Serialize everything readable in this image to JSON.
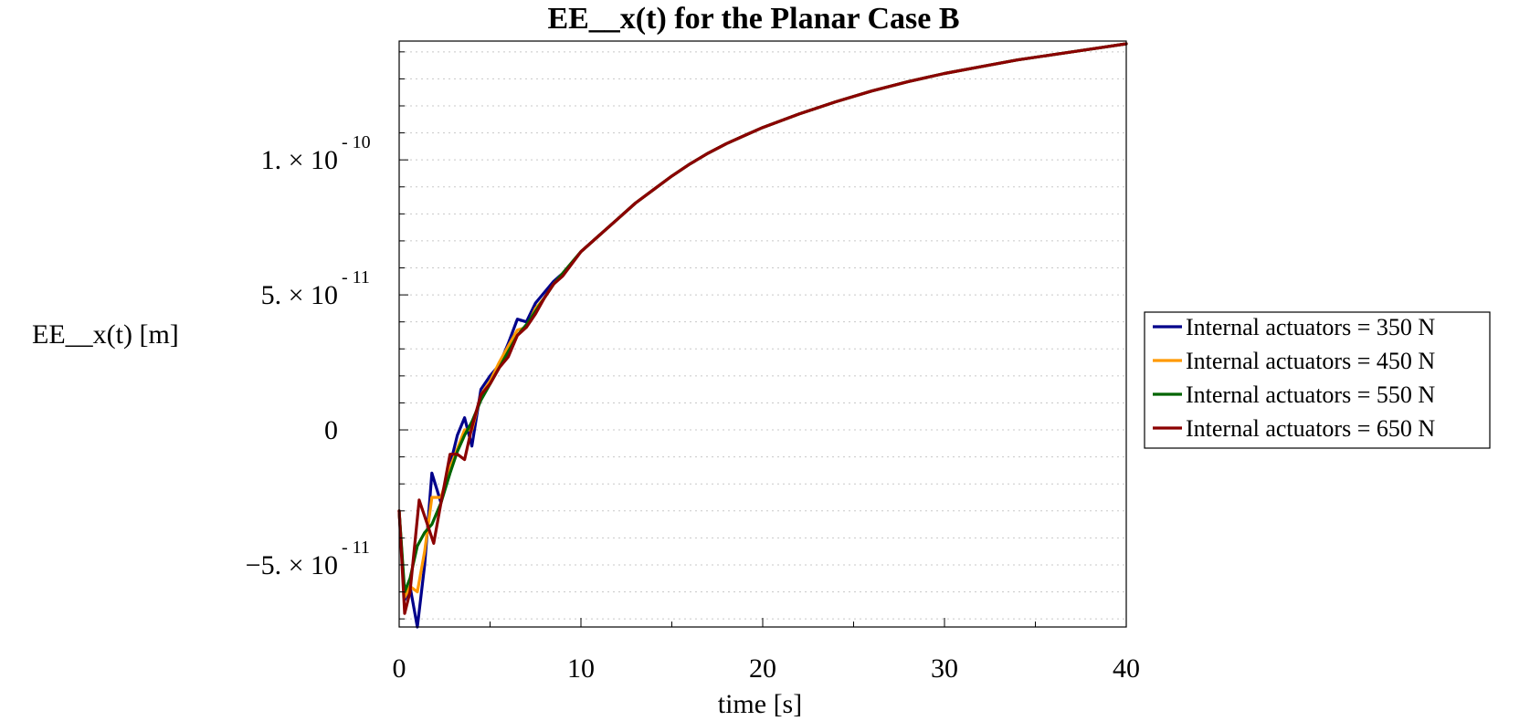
{
  "chart_data": {
    "type": "line",
    "title": "EE__x(t) for the Planar Case B",
    "xlabel": "time [s]",
    "ylabel": "EE__x(t) [m]",
    "xlim": [
      0,
      40
    ],
    "ylim": [
      -7.3e-11,
      1.44e-10
    ],
    "x_ticks": [
      {
        "value": 0,
        "label": "0"
      },
      {
        "value": 10,
        "label": "10"
      },
      {
        "value": 20,
        "label": "20"
      },
      {
        "value": 30,
        "label": "30"
      },
      {
        "value": 40,
        "label": "40"
      }
    ],
    "y_ticks": [
      {
        "value": -5e-11,
        "mantissa": "−5. × 10",
        "exponent": "- 11"
      },
      {
        "value": 0,
        "mantissa": "0",
        "exponent": ""
      },
      {
        "value": 5e-11,
        "mantissa": "5. × 10",
        "exponent": "- 11"
      },
      {
        "value": 1e-10,
        "mantissa": "1. × 10",
        "exponent": "- 10"
      }
    ],
    "grid": {
      "horizontal": true,
      "vertical": false
    },
    "legend_position": "right",
    "series": [
      {
        "name": "Internal actuators = 350 N",
        "color": "#00008b",
        "points": [
          [
            0,
            -3e-11
          ],
          [
            0.3,
            -6.3e-11
          ],
          [
            0.6,
            -5.8e-11
          ],
          [
            1.0,
            -7.3e-11
          ],
          [
            1.4,
            -5e-11
          ],
          [
            1.8,
            -1.6e-11
          ],
          [
            2.3,
            -2.7e-11
          ],
          [
            2.8,
            -1.3e-11
          ],
          [
            3.2,
            -2e-12
          ],
          [
            3.6,
            4.5e-12
          ],
          [
            4.0,
            -6e-12
          ],
          [
            4.5,
            1.5e-11
          ],
          [
            5.0,
            2e-11
          ],
          [
            5.5,
            2.4e-11
          ],
          [
            6.0,
            3.2e-11
          ],
          [
            6.5,
            4.1e-11
          ],
          [
            7.0,
            4e-11
          ],
          [
            7.5,
            4.7e-11
          ],
          [
            8.0,
            5.1e-11
          ],
          [
            8.5,
            5.5e-11
          ],
          [
            9.0,
            5.8e-11
          ],
          [
            10,
            6.6e-11
          ],
          [
            11,
            7.2e-11
          ],
          [
            12,
            7.8e-11
          ],
          [
            13,
            8.4e-11
          ],
          [
            14,
            8.9e-11
          ],
          [
            15,
            9.4e-11
          ],
          [
            16,
            9.85e-11
          ],
          [
            17,
            1.025e-10
          ],
          [
            18,
            1.06e-10
          ],
          [
            19,
            1.09e-10
          ],
          [
            20,
            1.12e-10
          ],
          [
            22,
            1.17e-10
          ],
          [
            24,
            1.215e-10
          ],
          [
            26,
            1.255e-10
          ],
          [
            28,
            1.29e-10
          ],
          [
            30,
            1.32e-10
          ],
          [
            32,
            1.345e-10
          ],
          [
            34,
            1.37e-10
          ],
          [
            36,
            1.39e-10
          ],
          [
            38,
            1.41e-10
          ],
          [
            40,
            1.43e-10
          ]
        ]
      },
      {
        "name": "Internal actuators = 450 N",
        "color": "#ff9900",
        "points": [
          [
            0,
            -3e-11
          ],
          [
            0.3,
            -6.2e-11
          ],
          [
            0.6,
            -5.8e-11
          ],
          [
            1.0,
            -6e-11
          ],
          [
            1.4,
            -4.5e-11
          ],
          [
            1.8,
            -2.5e-11
          ],
          [
            2.3,
            -2.5e-11
          ],
          [
            2.8,
            -1.4e-11
          ],
          [
            3.2,
            -7e-12
          ],
          [
            3.6,
            0.0
          ],
          [
            4.0,
            0.0
          ],
          [
            4.5,
            1.3e-11
          ],
          [
            5.0,
            1.8e-11
          ],
          [
            5.5,
            2.5e-11
          ],
          [
            6.0,
            3.1e-11
          ],
          [
            6.5,
            3.7e-11
          ],
          [
            7.0,
            3.8e-11
          ],
          [
            7.5,
            4.5e-11
          ],
          [
            8.0,
            4.9e-11
          ],
          [
            8.5,
            5.4e-11
          ],
          [
            9.0,
            5.8e-11
          ],
          [
            10,
            6.6e-11
          ],
          [
            11,
            7.2e-11
          ],
          [
            12,
            7.8e-11
          ],
          [
            13,
            8.4e-11
          ],
          [
            14,
            8.9e-11
          ],
          [
            15,
            9.4e-11
          ],
          [
            16,
            9.85e-11
          ],
          [
            17,
            1.025e-10
          ],
          [
            18,
            1.06e-10
          ],
          [
            19,
            1.09e-10
          ],
          [
            20,
            1.12e-10
          ],
          [
            22,
            1.17e-10
          ],
          [
            24,
            1.215e-10
          ],
          [
            26,
            1.255e-10
          ],
          [
            28,
            1.29e-10
          ],
          [
            30,
            1.32e-10
          ],
          [
            32,
            1.345e-10
          ],
          [
            34,
            1.37e-10
          ],
          [
            36,
            1.39e-10
          ],
          [
            38,
            1.41e-10
          ],
          [
            40,
            1.43e-10
          ]
        ]
      },
      {
        "name": "Internal actuators = 550 N",
        "color": "#006400",
        "points": [
          [
            0,
            -3e-11
          ],
          [
            0.3,
            -6e-11
          ],
          [
            0.6,
            -5.5e-11
          ],
          [
            1.0,
            -4.3e-11
          ],
          [
            1.4,
            -3.8e-11
          ],
          [
            1.8,
            -3.5e-11
          ],
          [
            2.3,
            -2.7e-11
          ],
          [
            2.8,
            -1.6e-11
          ],
          [
            3.2,
            -8e-12
          ],
          [
            3.6,
            -2e-12
          ],
          [
            4.0,
            3e-12
          ],
          [
            4.5,
            1.1e-11
          ],
          [
            5.0,
            1.7e-11
          ],
          [
            5.5,
            2.3e-11
          ],
          [
            6.0,
            2.9e-11
          ],
          [
            6.5,
            3.5e-11
          ],
          [
            7.0,
            3.9e-11
          ],
          [
            7.5,
            4.4e-11
          ],
          [
            8.0,
            4.9e-11
          ],
          [
            8.5,
            5.4e-11
          ],
          [
            9.0,
            5.8e-11
          ],
          [
            10,
            6.6e-11
          ],
          [
            11,
            7.2e-11
          ],
          [
            12,
            7.8e-11
          ],
          [
            13,
            8.4e-11
          ],
          [
            14,
            8.9e-11
          ],
          [
            15,
            9.4e-11
          ],
          [
            16,
            9.85e-11
          ],
          [
            17,
            1.025e-10
          ],
          [
            18,
            1.06e-10
          ],
          [
            19,
            1.09e-10
          ],
          [
            20,
            1.12e-10
          ],
          [
            22,
            1.17e-10
          ],
          [
            24,
            1.215e-10
          ],
          [
            26,
            1.255e-10
          ],
          [
            28,
            1.29e-10
          ],
          [
            30,
            1.32e-10
          ],
          [
            32,
            1.345e-10
          ],
          [
            34,
            1.37e-10
          ],
          [
            36,
            1.39e-10
          ],
          [
            38,
            1.41e-10
          ],
          [
            40,
            1.43e-10
          ]
        ]
      },
      {
        "name": "Internal actuators = 650 N",
        "color": "#8b0000",
        "points": [
          [
            0,
            -3e-11
          ],
          [
            0.3,
            -6.8e-11
          ],
          [
            0.6,
            -6e-11
          ],
          [
            1.1,
            -2.6e-11
          ],
          [
            1.5,
            -3.4e-11
          ],
          [
            1.9,
            -4.2e-11
          ],
          [
            2.3,
            -2.7e-11
          ],
          [
            2.8,
            -9e-12
          ],
          [
            3.2,
            -9e-12
          ],
          [
            3.6,
            -1.1e-11
          ],
          [
            4.0,
            1e-12
          ],
          [
            4.5,
            1.3e-11
          ],
          [
            5.0,
            1.7e-11
          ],
          [
            5.5,
            2.3e-11
          ],
          [
            6.0,
            2.7e-11
          ],
          [
            6.5,
            3.5e-11
          ],
          [
            7.0,
            3.8e-11
          ],
          [
            7.5,
            4.3e-11
          ],
          [
            8.0,
            4.9e-11
          ],
          [
            8.5,
            5.4e-11
          ],
          [
            9.0,
            5.7e-11
          ],
          [
            10,
            6.6e-11
          ],
          [
            11,
            7.2e-11
          ],
          [
            12,
            7.8e-11
          ],
          [
            13,
            8.4e-11
          ],
          [
            14,
            8.9e-11
          ],
          [
            15,
            9.4e-11
          ],
          [
            16,
            9.85e-11
          ],
          [
            17,
            1.025e-10
          ],
          [
            18,
            1.06e-10
          ],
          [
            19,
            1.09e-10
          ],
          [
            20,
            1.12e-10
          ],
          [
            22,
            1.17e-10
          ],
          [
            24,
            1.215e-10
          ],
          [
            26,
            1.255e-10
          ],
          [
            28,
            1.29e-10
          ],
          [
            30,
            1.32e-10
          ],
          [
            32,
            1.345e-10
          ],
          [
            34,
            1.37e-10
          ],
          [
            36,
            1.39e-10
          ],
          [
            38,
            1.41e-10
          ],
          [
            40,
            1.43e-10
          ]
        ]
      }
    ]
  }
}
